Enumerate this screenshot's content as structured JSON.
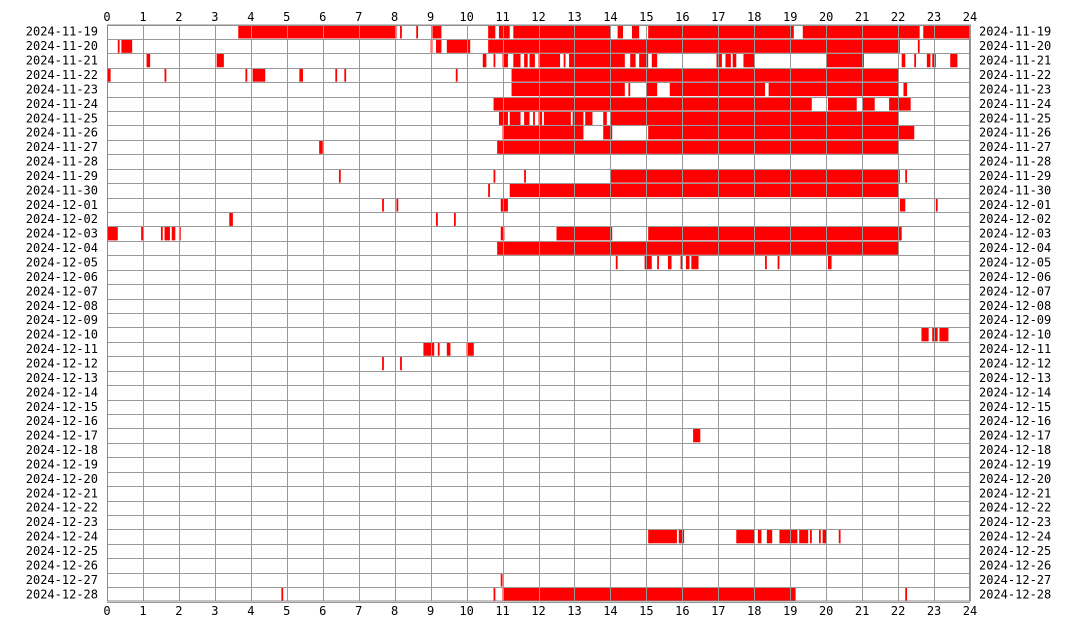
{
  "chart_data": {
    "type": "heatmap",
    "title": "",
    "xlabel": "",
    "ylabel": "",
    "x_ticks": [
      "0",
      "1",
      "2",
      "3",
      "4",
      "5",
      "6",
      "7",
      "8",
      "9",
      "10",
      "11",
      "12",
      "13",
      "14",
      "15",
      "16",
      "17",
      "18",
      "19",
      "20",
      "21",
      "22",
      "23",
      "24"
    ],
    "xlim": [
      0,
      24
    ],
    "grid": true,
    "bar_color": "#ff0000",
    "grid_color": "#999999",
    "days": [
      {
        "date": "2024-11-19",
        "intervals": [
          [
            3.65,
            8.05
          ],
          [
            8.15,
            8.2
          ],
          [
            8.6,
            8.65
          ],
          [
            9.05,
            9.3
          ],
          [
            10.6,
            10.8
          ],
          [
            10.9,
            11.2
          ],
          [
            11.3,
            14.0
          ],
          [
            14.2,
            14.35
          ],
          [
            14.6,
            14.8
          ],
          [
            15.05,
            19.1
          ],
          [
            19.35,
            22.6
          ],
          [
            22.7,
            24.0
          ]
        ]
      },
      {
        "date": "2024-11-20",
        "intervals": [
          [
            0.3,
            0.35
          ],
          [
            0.4,
            0.7
          ],
          [
            9.0,
            9.05
          ],
          [
            9.15,
            9.3
          ],
          [
            9.45,
            10.1
          ],
          [
            10.6,
            22.05
          ],
          [
            22.55,
            22.6
          ]
        ]
      },
      {
        "date": "2024-11-21",
        "intervals": [
          [
            1.1,
            1.2
          ],
          [
            3.05,
            3.25
          ],
          [
            10.45,
            10.55
          ],
          [
            10.75,
            10.8
          ],
          [
            11.0,
            11.15
          ],
          [
            11.3,
            11.5
          ],
          [
            11.6,
            11.7
          ],
          [
            11.75,
            11.9
          ],
          [
            12.0,
            12.6
          ],
          [
            12.7,
            12.75
          ],
          [
            12.85,
            14.4
          ],
          [
            14.55,
            14.7
          ],
          [
            14.8,
            15.05
          ],
          [
            15.15,
            15.3
          ],
          [
            16.95,
            17.1
          ],
          [
            17.2,
            17.35
          ],
          [
            17.4,
            17.5
          ],
          [
            17.7,
            18.0
          ],
          [
            20.0,
            21.05
          ],
          [
            22.1,
            22.2
          ],
          [
            22.45,
            22.5
          ],
          [
            22.8,
            22.9
          ],
          [
            22.95,
            23.05
          ],
          [
            23.45,
            23.65
          ]
        ]
      },
      {
        "date": "2024-11-22",
        "intervals": [
          [
            0.0,
            0.1
          ],
          [
            1.6,
            1.65
          ],
          [
            3.85,
            3.9
          ],
          [
            4.05,
            4.4
          ],
          [
            5.35,
            5.45
          ],
          [
            6.35,
            6.4
          ],
          [
            6.6,
            6.65
          ],
          [
            9.7,
            9.75
          ],
          [
            11.25,
            22.0
          ]
        ]
      },
      {
        "date": "2024-11-23",
        "intervals": [
          [
            11.25,
            14.4
          ],
          [
            14.5,
            14.55
          ],
          [
            15.0,
            15.3
          ],
          [
            15.65,
            18.3
          ],
          [
            18.4,
            22.0
          ],
          [
            22.15,
            22.25
          ]
        ]
      },
      {
        "date": "2024-11-24",
        "intervals": [
          [
            10.75,
            19.6
          ],
          [
            20.05,
            20.85
          ],
          [
            21.0,
            21.35
          ],
          [
            21.75,
            22.35
          ]
        ]
      },
      {
        "date": "2024-11-25",
        "intervals": [
          [
            10.9,
            11.15
          ],
          [
            11.2,
            11.5
          ],
          [
            11.6,
            11.75
          ],
          [
            11.85,
            11.9
          ],
          [
            12.0,
            12.1
          ],
          [
            12.15,
            12.9
          ],
          [
            12.95,
            13.25
          ],
          [
            13.3,
            13.5
          ],
          [
            13.8,
            13.9
          ],
          [
            14.0,
            22.0
          ]
        ]
      },
      {
        "date": "2024-11-26",
        "intervals": [
          [
            11.0,
            13.25
          ],
          [
            13.8,
            14.05
          ],
          [
            15.05,
            22.45
          ]
        ]
      },
      {
        "date": "2024-11-27",
        "intervals": [
          [
            5.9,
            6.0
          ],
          [
            10.85,
            22.0
          ]
        ]
      },
      {
        "date": "2024-11-28",
        "intervals": []
      },
      {
        "date": "2024-11-29",
        "intervals": [
          [
            6.45,
            6.5
          ],
          [
            10.75,
            10.8
          ],
          [
            11.6,
            11.65
          ],
          [
            14.0,
            22.05
          ],
          [
            22.2,
            22.25
          ]
        ]
      },
      {
        "date": "2024-11-30",
        "intervals": [
          [
            10.6,
            10.65
          ],
          [
            11.2,
            22.0
          ]
        ]
      },
      {
        "date": "2024-12-01",
        "intervals": [
          [
            7.65,
            7.7
          ],
          [
            8.05,
            8.1
          ],
          [
            10.95,
            11.15
          ],
          [
            22.05,
            22.2
          ],
          [
            23.05,
            23.1
          ]
        ]
      },
      {
        "date": "2024-12-02",
        "intervals": [
          [
            3.4,
            3.5
          ],
          [
            9.15,
            9.2
          ],
          [
            9.65,
            9.7
          ]
        ]
      },
      {
        "date": "2024-12-03",
        "intervals": [
          [
            0.0,
            0.3
          ],
          [
            0.95,
            1.0
          ],
          [
            1.5,
            1.55
          ],
          [
            1.6,
            1.75
          ],
          [
            1.8,
            1.9
          ],
          [
            2.0,
            2.05
          ],
          [
            10.95,
            11.05
          ],
          [
            12.5,
            14.05
          ],
          [
            15.05,
            22.1
          ]
        ]
      },
      {
        "date": "2024-12-04",
        "intervals": [
          [
            10.85,
            22.0
          ]
        ]
      },
      {
        "date": "2024-12-05",
        "intervals": [
          [
            14.15,
            14.2
          ],
          [
            14.95,
            15.15
          ],
          [
            15.3,
            15.35
          ],
          [
            15.6,
            15.7
          ],
          [
            15.95,
            16.0
          ],
          [
            16.1,
            16.2
          ],
          [
            16.25,
            16.45
          ],
          [
            18.3,
            18.35
          ],
          [
            18.65,
            18.7
          ],
          [
            20.05,
            20.15
          ]
        ]
      },
      {
        "date": "2024-12-06",
        "intervals": []
      },
      {
        "date": "2024-12-07",
        "intervals": []
      },
      {
        "date": "2024-12-08",
        "intervals": []
      },
      {
        "date": "2024-12-09",
        "intervals": []
      },
      {
        "date": "2024-12-10",
        "intervals": [
          [
            22.65,
            22.85
          ],
          [
            22.95,
            23.1
          ],
          [
            23.15,
            23.4
          ]
        ]
      },
      {
        "date": "2024-12-11",
        "intervals": [
          [
            8.8,
            9.1
          ],
          [
            9.2,
            9.25
          ],
          [
            9.45,
            9.55
          ],
          [
            10.0,
            10.2
          ]
        ]
      },
      {
        "date": "2024-12-12",
        "intervals": [
          [
            7.65,
            7.7
          ],
          [
            8.15,
            8.2
          ]
        ]
      },
      {
        "date": "2024-12-13",
        "intervals": []
      },
      {
        "date": "2024-12-14",
        "intervals": []
      },
      {
        "date": "2024-12-15",
        "intervals": []
      },
      {
        "date": "2024-12-16",
        "intervals": []
      },
      {
        "date": "2024-12-17",
        "intervals": [
          [
            16.3,
            16.5
          ]
        ]
      },
      {
        "date": "2024-12-18",
        "intervals": []
      },
      {
        "date": "2024-12-19",
        "intervals": []
      },
      {
        "date": "2024-12-20",
        "intervals": []
      },
      {
        "date": "2024-12-21",
        "intervals": []
      },
      {
        "date": "2024-12-22",
        "intervals": []
      },
      {
        "date": "2024-12-23",
        "intervals": []
      },
      {
        "date": "2024-12-24",
        "intervals": [
          [
            15.05,
            15.85
          ],
          [
            15.9,
            16.05
          ],
          [
            17.5,
            18.0
          ],
          [
            18.1,
            18.2
          ],
          [
            18.35,
            18.5
          ],
          [
            18.7,
            19.2
          ],
          [
            19.25,
            19.5
          ],
          [
            19.55,
            19.6
          ],
          [
            19.8,
            19.85
          ],
          [
            19.9,
            20.0
          ],
          [
            20.35,
            20.4
          ]
        ]
      },
      {
        "date": "2024-12-25",
        "intervals": []
      },
      {
        "date": "2024-12-26",
        "intervals": []
      },
      {
        "date": "2024-12-27",
        "intervals": [
          [
            10.95,
            11.0
          ]
        ]
      },
      {
        "date": "2024-12-28",
        "intervals": [
          [
            4.85,
            4.9
          ],
          [
            10.75,
            10.8
          ],
          [
            11.0,
            19.15
          ],
          [
            22.2,
            22.25
          ]
        ]
      }
    ]
  }
}
